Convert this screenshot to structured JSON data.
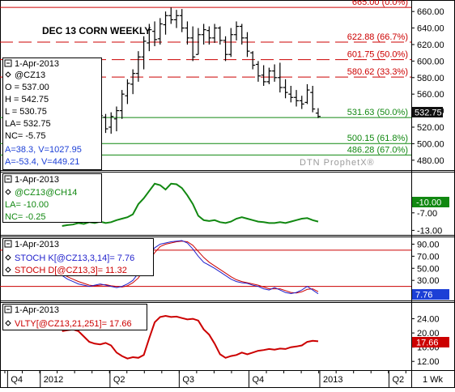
{
  "chart_data": [
    {
      "type": "ohlc",
      "panel": "price",
      "title": "DEC 13 CORN WEEKLY",
      "watermark": "DTN ProphetX®",
      "ylim": [
        470,
        670
      ],
      "yticks": [
        "660.00",
        "640.00",
        "620.00",
        "600.00",
        "580.00",
        "560.00",
        "540.00",
        "520.00",
        "500.00",
        "480.00"
      ],
      "last_price_label": "532.75",
      "info": {
        "date": "1-Apr-2013",
        "symbol": "@CZ13",
        "open": "O = 537.00",
        "high": "H = 542.75",
        "low": "L = 530.75",
        "last": "LA= 532.75",
        "net_change": "NC= -5.75",
        "ad_line_1": "A=38.3, V=1027.95",
        "ad_line_2": "A=-53.4, V=449.21"
      },
      "levels": [
        {
          "value": 665.0,
          "label": "665.00 (0.0%)",
          "color": "#cc0000",
          "style": "solid"
        },
        {
          "value": 622.88,
          "label": "622.88 (66.7%)",
          "color": "#cc0000",
          "style": "dashed"
        },
        {
          "value": 601.75,
          "label": "601.75 (50.0%)",
          "color": "#cc0000",
          "style": "dashed"
        },
        {
          "value": 580.62,
          "label": "580.62 (33.3%)",
          "color": "#cc0000",
          "style": "dashed"
        },
        {
          "value": 531.63,
          "label": "531.63 (50.0%)",
          "color": "#118811",
          "style": "solid"
        },
        {
          "value": 500.15,
          "label": "500.15 (61.8%)",
          "color": "#118811",
          "style": "solid"
        },
        {
          "value": 486.28,
          "label": "486.28 (67.0%)",
          "color": "#118811",
          "style": "solid"
        }
      ],
      "bars": [
        {
          "h": 563,
          "l": 548,
          "o": 560,
          "c": 553
        },
        {
          "h": 561,
          "l": 540,
          "o": 555,
          "c": 548
        },
        {
          "h": 552,
          "l": 522,
          "o": 545,
          "c": 528
        },
        {
          "h": 548,
          "l": 530,
          "o": 532,
          "c": 545
        },
        {
          "h": 546,
          "l": 528,
          "o": 543,
          "c": 533
        },
        {
          "h": 544,
          "l": 525,
          "o": 535,
          "c": 540
        },
        {
          "h": 542,
          "l": 518,
          "o": 538,
          "c": 524
        },
        {
          "h": 540,
          "l": 514,
          "o": 525,
          "c": 534
        },
        {
          "h": 536,
          "l": 513,
          "o": 532,
          "c": 518
        },
        {
          "h": 538,
          "l": 512,
          "o": 520,
          "c": 533
        },
        {
          "h": 545,
          "l": 515,
          "o": 530,
          "c": 540
        },
        {
          "h": 565,
          "l": 530,
          "o": 540,
          "c": 560
        },
        {
          "h": 578,
          "l": 548,
          "o": 558,
          "c": 573
        },
        {
          "h": 590,
          "l": 560,
          "o": 572,
          "c": 585
        },
        {
          "h": 612,
          "l": 575,
          "o": 585,
          "c": 605
        },
        {
          "h": 630,
          "l": 590,
          "o": 605,
          "c": 624
        },
        {
          "h": 645,
          "l": 612,
          "o": 622,
          "c": 638
        },
        {
          "h": 648,
          "l": 618,
          "o": 636,
          "c": 626
        },
        {
          "h": 652,
          "l": 620,
          "o": 627,
          "c": 645
        },
        {
          "h": 660,
          "l": 632,
          "o": 644,
          "c": 655
        },
        {
          "h": 665,
          "l": 645,
          "o": 655,
          "c": 650
        },
        {
          "h": 662,
          "l": 640,
          "o": 650,
          "c": 655
        },
        {
          "h": 663,
          "l": 635,
          "o": 655,
          "c": 640
        },
        {
          "h": 648,
          "l": 620,
          "o": 640,
          "c": 628
        },
        {
          "h": 642,
          "l": 600,
          "o": 628,
          "c": 605
        },
        {
          "h": 640,
          "l": 608,
          "o": 608,
          "c": 632
        },
        {
          "h": 645,
          "l": 620,
          "o": 632,
          "c": 638
        },
        {
          "h": 642,
          "l": 620,
          "o": 637,
          "c": 628
        },
        {
          "h": 645,
          "l": 622,
          "o": 628,
          "c": 640
        },
        {
          "h": 642,
          "l": 620,
          "o": 640,
          "c": 625
        },
        {
          "h": 630,
          "l": 600,
          "o": 625,
          "c": 608
        },
        {
          "h": 640,
          "l": 605,
          "o": 608,
          "c": 632
        },
        {
          "h": 648,
          "l": 625,
          "o": 632,
          "c": 642
        },
        {
          "h": 645,
          "l": 620,
          "o": 642,
          "c": 628
        },
        {
          "h": 635,
          "l": 605,
          "o": 628,
          "c": 612
        },
        {
          "h": 612,
          "l": 590,
          "o": 610,
          "c": 595
        },
        {
          "h": 600,
          "l": 575,
          "o": 596,
          "c": 582
        },
        {
          "h": 595,
          "l": 570,
          "o": 583,
          "c": 575
        },
        {
          "h": 592,
          "l": 572,
          "o": 575,
          "c": 588
        },
        {
          "h": 596,
          "l": 575,
          "o": 588,
          "c": 580
        },
        {
          "h": 598,
          "l": 562,
          "o": 580,
          "c": 568
        },
        {
          "h": 578,
          "l": 555,
          "o": 568,
          "c": 562
        },
        {
          "h": 570,
          "l": 550,
          "o": 560,
          "c": 556
        },
        {
          "h": 565,
          "l": 545,
          "o": 556,
          "c": 552
        },
        {
          "h": 558,
          "l": 542,
          "o": 552,
          "c": 548
        },
        {
          "h": 572,
          "l": 548,
          "o": 550,
          "c": 565
        },
        {
          "h": 570,
          "l": 538,
          "o": 562,
          "c": 542
        },
        {
          "h": 543,
          "l": 531,
          "o": 537,
          "c": 533
        }
      ]
    },
    {
      "type": "line",
      "panel": "spread",
      "ylim": [
        -14,
        6
      ],
      "yticks": [
        "-7.00",
        "-13.00"
      ],
      "last_value_label": "-10.00",
      "info": {
        "date": "1-Apr-2013",
        "symbol": "@CZ13@CH14",
        "last": "LA= -10.00",
        "net_change": "NC= -0.25"
      },
      "series": [
        {
          "name": "@CZ13@CH14",
          "color": "#118811",
          "values": [
            -11.5,
            -11.2,
            -11.0,
            -10.5,
            -10.8,
            -10.2,
            -10.5,
            -10.0,
            -10.5,
            -10.2,
            -9.5,
            -9.0,
            -8.5,
            -7.5,
            -4.0,
            -2.0,
            0.5,
            3.0,
            2.5,
            1.0,
            3.0,
            2.8,
            1.5,
            -1.0,
            -4.0,
            -8.0,
            -9.5,
            -9.8,
            -9.5,
            -10.2,
            -10.5,
            -10.0,
            -9.0,
            -8.5,
            -9.0,
            -9.5,
            -10.0,
            -10.2,
            -10.5,
            -10.5,
            -10.2,
            -10.5,
            -10.0,
            -9.5,
            -9.0,
            -8.8,
            -9.5,
            -10.0
          ]
        }
      ]
    },
    {
      "type": "line",
      "panel": "stochastic",
      "ylim": [
        -2,
        100
      ],
      "yticks": [
        "90.00",
        "70.00",
        "50.00",
        "30.00"
      ],
      "last_value_label": "7.76",
      "overbought": 80,
      "oversold": 20,
      "info": {
        "date": "1-Apr-2013",
        "k_label": "STOCH K[@CZ13,3,14]= 7.76",
        "d_label": "STOCH D[@CZ13,3]= 11.32"
      },
      "series": [
        {
          "name": "STOCH K[@CZ13,3,14]",
          "color": "#2222cc",
          "values": [
            38,
            32,
            28,
            24,
            22,
            20,
            22,
            24,
            22,
            20,
            18,
            20,
            24,
            30,
            42,
            58,
            72,
            84,
            90,
            92,
            94,
            95,
            96,
            92,
            82,
            70,
            60,
            55,
            50,
            44,
            38,
            32,
            28,
            26,
            25,
            22,
            20,
            16,
            14,
            18,
            14,
            10,
            8,
            10,
            14,
            20,
            14,
            7.76
          ]
        },
        {
          "name": "STOCH D[@CZ13,3]",
          "color": "#cc0000",
          "values": [
            42,
            36,
            32,
            28,
            25,
            22,
            21,
            22,
            23,
            21,
            20,
            19,
            21,
            26,
            34,
            48,
            62,
            76,
            86,
            90,
            92,
            94,
            95,
            94,
            88,
            78,
            68,
            60,
            54,
            48,
            42,
            36,
            31,
            28,
            26,
            24,
            22,
            19,
            16,
            16,
            16,
            13,
            10,
            9,
            11,
            15,
            16,
            11.32
          ]
        }
      ]
    },
    {
      "type": "line",
      "panel": "volatility",
      "ylim": [
        10,
        28
      ],
      "yticks": [
        "24.00",
        "20.00",
        "16.00",
        "12.00"
      ],
      "last_value_label": "17.66",
      "info": {
        "date": "1-Apr-2013",
        "label": "VLTY[@CZ13,21,251]= 17.66"
      },
      "series": [
        {
          "name": "VLTY[@CZ13,21,251]",
          "color": "#cc0000",
          "values": [
            20.5,
            20.8,
            21.0,
            20.5,
            19.0,
            17.5,
            17.0,
            16.8,
            17.2,
            16.5,
            14.5,
            13.5,
            12.8,
            13.2,
            13.0,
            13.8,
            18.5,
            23.0,
            24.5,
            24.8,
            24.5,
            24.6,
            24.2,
            23.8,
            24.0,
            23.5,
            21.0,
            19.5,
            17.0,
            14.0,
            13.0,
            13.5,
            13.8,
            14.5,
            14.0,
            14.5,
            15.0,
            15.2,
            15.5,
            15.3,
            15.6,
            15.5,
            16.0,
            16.2,
            16.5,
            17.5,
            17.8,
            17.66
          ]
        }
      ]
    }
  ],
  "x_axis": {
    "labels": [
      {
        "text": "Q4",
        "index": 0.5
      },
      {
        "text": "2012",
        "index": 6.5
      },
      {
        "text": "Q2",
        "index": 19.3
      },
      {
        "text": "Q3",
        "index": 32
      },
      {
        "text": "Q4",
        "index": 44.8
      },
      {
        "text": "2013",
        "index": 57.8
      },
      {
        "text": "Q2",
        "index": 70.5
      }
    ],
    "bars_offset": 10,
    "total_slots": 74,
    "period_label": "1 Wk"
  },
  "colors": {
    "resistance": "#cc0000",
    "support": "#118811",
    "bars": "#000000",
    "badge_blue": "#1c3fd6",
    "badge_red": "#cc0000",
    "badge_dark": "#111111"
  }
}
